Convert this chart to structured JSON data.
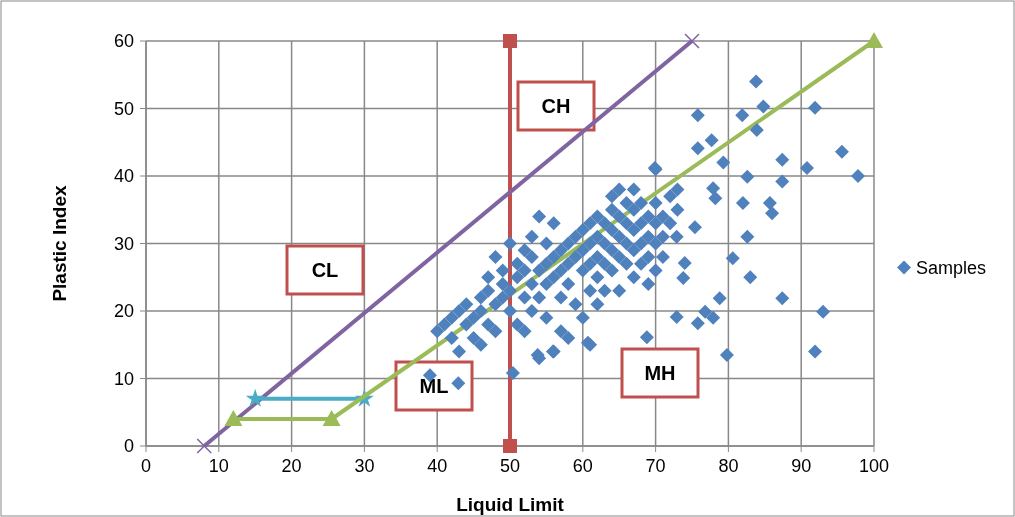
{
  "chart_data": {
    "type": "scatter",
    "xlabel": "Liquid Limit",
    "ylabel": "Plastic Index",
    "xlim": [
      0,
      100
    ],
    "ylim": [
      0,
      60
    ],
    "xticks": [
      0,
      10,
      20,
      30,
      40,
      50,
      60,
      70,
      80,
      90,
      100
    ],
    "yticks": [
      0,
      10,
      20,
      30,
      40,
      50,
      60
    ],
    "grid": true,
    "legend": "right",
    "annotations": [
      "CH",
      "CL",
      "ML",
      "MH"
    ],
    "series": [
      {
        "type": "line",
        "color": "#c0504d",
        "marker": "square",
        "x": [
          50,
          50
        ],
        "values": [
          0,
          60
        ]
      },
      {
        "type": "line",
        "color": "#8064a2",
        "marker": "cross",
        "x": [
          8,
          75
        ],
        "values": [
          0,
          60
        ]
      },
      {
        "type": "line",
        "color": "#4bacc6",
        "marker": "star",
        "x": [
          15,
          30
        ],
        "values": [
          7,
          7
        ]
      },
      {
        "type": "line",
        "color": "#9bbb59",
        "marker": "triangle",
        "x": [
          12,
          25.5,
          100
        ],
        "values": [
          4,
          4,
          60
        ]
      },
      {
        "type": "scatter",
        "name": "Samples",
        "color": "#4f81bd",
        "marker": "diamond",
        "x": [
          40,
          41,
          42,
          42,
          43,
          43,
          44,
          44,
          45,
          45,
          46,
          46,
          46,
          47,
          47,
          47,
          48,
          48,
          48,
          49,
          49,
          49,
          50,
          50,
          50,
          51,
          51,
          51,
          52,
          52,
          52,
          52,
          53,
          53,
          53,
          53,
          54,
          54,
          54,
          54,
          55,
          55,
          55,
          55,
          56,
          56,
          56,
          56,
          57,
          57,
          57,
          57,
          58,
          58,
          58,
          58,
          59,
          59,
          59,
          60,
          60,
          60,
          60,
          61,
          61,
          61,
          61,
          61,
          62,
          62,
          62,
          62,
          62,
          63,
          63,
          63,
          63,
          64,
          64,
          64,
          64,
          64,
          65,
          65,
          65,
          65,
          65,
          66,
          66,
          66,
          66,
          67,
          67,
          67,
          67,
          67,
          68,
          68,
          68,
          68,
          69,
          69,
          69,
          69,
          70,
          70,
          70,
          70,
          70,
          71,
          71,
          71,
          72,
          72,
          73,
          73,
          39,
          42.9,
          50.4,
          60.7,
          53.8,
          55.9,
          83.8,
          91.9,
          75.8,
          81.9,
          84.8,
          83.9,
          77.7,
          75.8,
          95.6,
          87.4,
          90.8,
          97.8,
          82.6,
          87.4,
          79.3,
          77.9,
          78.2,
          82,
          85.7,
          86,
          82.6,
          80.6,
          83,
          87.4,
          78.8,
          93,
          76.8,
          72.9,
          77.9,
          75.8,
          79.8,
          91.9,
          68.8,
          75.4,
          72.9,
          74,
          73.8,
          69.9
        ],
        "values": [
          17,
          18,
          19,
          16,
          20,
          14,
          18,
          21,
          19,
          16,
          22,
          20,
          15,
          23,
          18,
          25,
          21,
          28,
          17,
          22,
          26,
          24,
          30,
          23,
          20,
          25,
          27,
          18,
          22,
          26,
          29,
          17,
          24,
          28,
          31,
          20,
          26,
          22,
          34,
          13,
          27,
          30,
          24,
          19,
          33,
          28,
          25,
          14,
          29,
          26,
          22,
          17,
          30,
          27,
          24,
          16,
          31,
          28,
          21,
          32,
          29,
          26,
          19,
          33,
          30,
          27,
          23,
          15,
          34,
          31,
          28,
          25,
          21,
          33,
          30,
          27,
          23,
          37,
          35,
          32,
          29,
          26,
          38,
          34,
          31,
          28,
          23,
          36,
          33,
          30,
          27,
          38,
          35,
          32,
          29,
          25,
          36,
          33,
          30,
          27,
          34,
          31,
          28,
          24,
          41,
          36,
          33,
          30,
          26,
          34,
          31,
          28,
          37,
          33,
          38,
          35,
          10.5,
          9.3,
          10.8,
          15.3,
          13.5,
          14,
          54,
          50.1,
          49,
          49,
          50.3,
          46.8,
          45.3,
          44.1,
          43.6,
          42.4,
          41.2,
          40,
          39.9,
          39.2,
          42,
          38.2,
          36.7,
          36,
          36,
          34.5,
          31,
          27.8,
          25,
          21.9,
          21.9,
          19.9,
          19.9,
          19.1,
          19,
          18.2,
          13.5,
          14,
          16.1,
          32.4,
          31,
          27.1,
          24.9,
          41.2
        ]
      }
    ]
  }
}
